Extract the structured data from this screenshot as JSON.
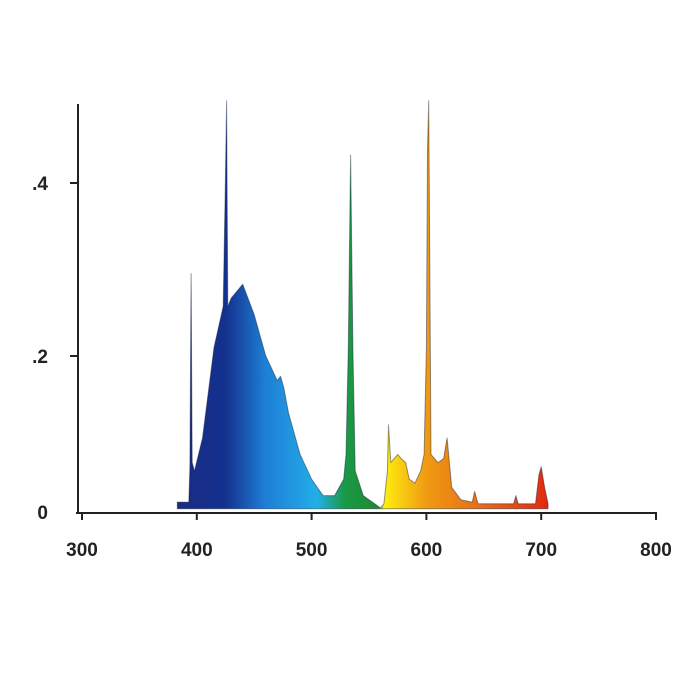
{
  "chart_data": {
    "type": "area",
    "title": "",
    "xlabel": "",
    "ylabel": "",
    "xlim": [
      300,
      800
    ],
    "ylim": [
      0,
      0.5
    ],
    "grid": false,
    "x_ticks": [
      300,
      400,
      500,
      600,
      700,
      800
    ],
    "x_tick_labels": [
      "300",
      "400",
      "500",
      "600",
      "700",
      "800"
    ],
    "y_ticks": [
      0,
      0.2,
      0.4
    ],
    "y_tick_labels": [
      "0",
      ".2",
      ".4"
    ],
    "fill": "spectral gradient by wavelength",
    "gradient_colors": [
      {
        "x": 380,
        "color": "#1c2a80"
      },
      {
        "x": 425,
        "color": "#13318f"
      },
      {
        "x": 460,
        "color": "#1e7fd6"
      },
      {
        "x": 505,
        "color": "#22aee8"
      },
      {
        "x": 528,
        "color": "#1a9a48"
      },
      {
        "x": 558,
        "color": "#1f8a2e"
      },
      {
        "x": 563,
        "color": "#ffee10"
      },
      {
        "x": 600,
        "color": "#f09a12"
      },
      {
        "x": 650,
        "color": "#e66a1a"
      },
      {
        "x": 705,
        "color": "#e02a10"
      }
    ],
    "series": [
      {
        "x": [
          383,
          393,
          394,
          395,
          396,
          398,
          405,
          415,
          423,
          425,
          426,
          427,
          430,
          440,
          450,
          460,
          470,
          473,
          476,
          480,
          490,
          500,
          510,
          520,
          528,
          530,
          532,
          534,
          536,
          538,
          545,
          555,
          560,
          563,
          566,
          567,
          569,
          575,
          578,
          582,
          585,
          590,
          595,
          598,
          600,
          601,
          602,
          603,
          604,
          610,
          615,
          618,
          620,
          622,
          630,
          640,
          642,
          645,
          660,
          676,
          678,
          680,
          695,
          698,
          700,
          703,
          706
        ],
        "y": [
          0.012,
          0.012,
          0.055,
          0.29,
          0.06,
          0.05,
          0.09,
          0.2,
          0.25,
          0.41,
          0.5,
          0.25,
          0.26,
          0.277,
          0.24,
          0.19,
          0.16,
          0.165,
          0.15,
          0.12,
          0.07,
          0.04,
          0.02,
          0.02,
          0.04,
          0.07,
          0.2,
          0.434,
          0.2,
          0.05,
          0.02,
          0.01,
          0.005,
          0.01,
          0.05,
          0.106,
          0.06,
          0.07,
          0.065,
          0.06,
          0.04,
          0.035,
          0.05,
          0.07,
          0.2,
          0.44,
          0.5,
          0.3,
          0.07,
          0.06,
          0.065,
          0.09,
          0.06,
          0.03,
          0.015,
          0.012,
          0.025,
          0.01,
          0.01,
          0.01,
          0.02,
          0.01,
          0.01,
          0.045,
          0.055,
          0.03,
          0.01
        ]
      }
    ]
  }
}
